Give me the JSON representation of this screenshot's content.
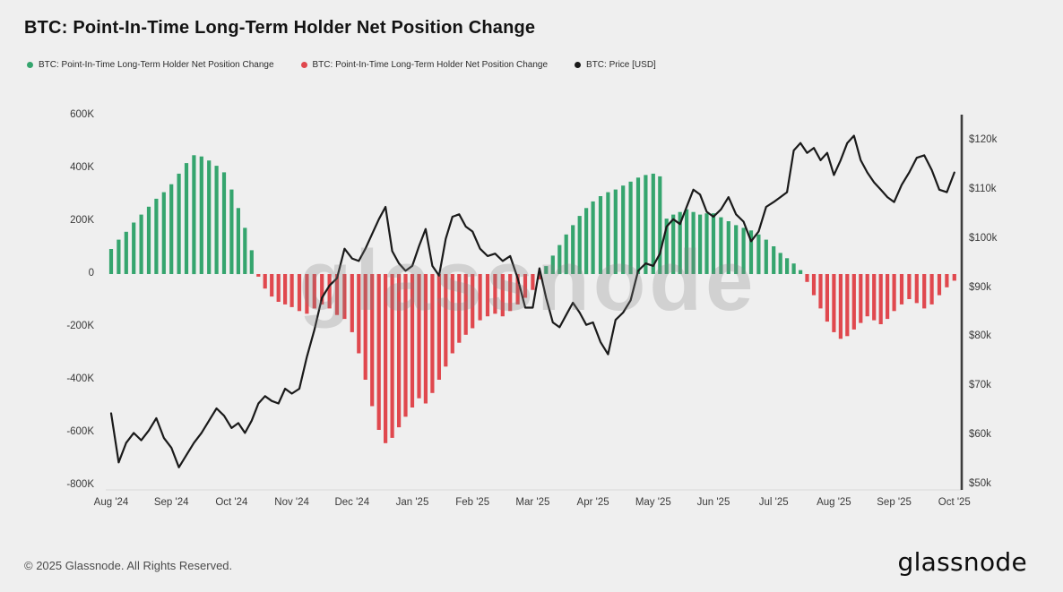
{
  "page": {
    "title": "BTC: Point-In-Time Long-Term Holder Net Position Change",
    "watermark": "glassnode",
    "footer_copyright": "© 2025 Glassnode. All Rights Reserved.",
    "brand_wordmark": "glassnode",
    "background_color": "#efefef"
  },
  "legend": {
    "items": [
      {
        "label": "BTC: Point-In-Time Long-Term Holder Net Position Change",
        "color": "#35a56e",
        "marker": "dot"
      },
      {
        "label": "BTC: Point-In-Time Long-Term Holder Net Position Change",
        "color": "#e0484e",
        "marker": "dot"
      },
      {
        "label": "BTC: Price [USD]",
        "color": "#1a1a1a",
        "marker": "dot"
      }
    ]
  },
  "chart_data": {
    "type": "bar",
    "combo_types": [
      "bar",
      "line"
    ],
    "title": "BTC: Point-In-Time Long-Term Holder Net Position Change",
    "grid": false,
    "legend_position": "top-left",
    "x_months": [
      "Aug '24",
      "Sep '24",
      "Oct '24",
      "Nov '24",
      "Dec '24",
      "Jan '25",
      "Feb '25",
      "Mar '25",
      "Apr '25",
      "May '25",
      "Jun '25",
      "Jul '25",
      "Aug '25",
      "Sep '25",
      "Oct '25"
    ],
    "left_axis": {
      "ticks": [
        "600K",
        "400K",
        "200K",
        "0",
        "-200K",
        "-400K",
        "-600K",
        "-800K"
      ],
      "tick_values": [
        600,
        400,
        200,
        0,
        -200,
        -400,
        -600,
        -800
      ],
      "range": [
        -800,
        620
      ],
      "values_unit": "K BTC"
    },
    "right_axis": {
      "ticks": [
        "$120k",
        "$110k",
        "$100k",
        "$90k",
        "$80k",
        "$70k",
        "$60k",
        "$50k"
      ],
      "tick_values": [
        120,
        110,
        100,
        90,
        80,
        70,
        60,
        50
      ],
      "range": [
        50,
        123
      ],
      "values_unit": "USD (thousands)"
    },
    "series": [
      {
        "name": "BTC: Point-In-Time Long-Term Holder Net Position Change",
        "type": "bar",
        "axis": "left",
        "values_unit": "K BTC",
        "positive_color": "#35a56e",
        "negative_color": "#e0484e",
        "monthly_values": [
          {
            "month": "Aug '24",
            "values": [
              95,
              130,
              160,
              195,
              225,
              255,
              285,
              310
            ]
          },
          {
            "month": "Sep '24",
            "values": [
              340,
              380,
              420,
              450,
              445,
              430,
              410,
              385
            ]
          },
          {
            "month": "Oct '24",
            "values": [
              320,
              250,
              175,
              90,
              -10,
              -55,
              -85,
              -105,
              -115
            ]
          },
          {
            "month": "Nov '24",
            "values": [
              -125,
              -140,
              -150,
              -130,
              -115,
              -130,
              -155,
              -170
            ]
          },
          {
            "month": "Dec '24",
            "values": [
              -220,
              -300,
              -400,
              -500,
              -590,
              -640,
              -620,
              -580,
              -540
            ]
          },
          {
            "month": "Jan '25",
            "values": [
              -505,
              -470,
              -490,
              -450,
              -400,
              -350,
              -300,
              -260,
              -230
            ]
          },
          {
            "month": "Feb '25",
            "values": [
              -205,
              -175,
              -160,
              -150,
              -160,
              -140,
              -115,
              -90
            ]
          },
          {
            "month": "Mar '25",
            "values": [
              -60,
              -20,
              30,
              70,
              110,
              150,
              185,
              220,
              250
            ]
          },
          {
            "month": "Apr '25",
            "values": [
              275,
              295,
              310,
              320,
              335,
              350,
              365,
              375
            ]
          },
          {
            "month": "May '25",
            "values": [
              380,
              370,
              210,
              225,
              235,
              245,
              235,
              225,
              230
            ]
          },
          {
            "month": "Jun '25",
            "values": [
              230,
              215,
              200,
              185,
              175,
              165,
              150,
              130
            ]
          },
          {
            "month": "Jul '25",
            "values": [
              105,
              80,
              60,
              40,
              15,
              -30,
              -80,
              -130,
              -180
            ]
          },
          {
            "month": "Aug '25",
            "values": [
              -220,
              -245,
              -235,
              -210,
              -185,
              -160,
              -175,
              -190,
              -170
            ]
          },
          {
            "month": "Sep '25",
            "values": [
              -140,
              -115,
              -95,
              -110,
              -130,
              -115,
              -80,
              -50
            ]
          },
          {
            "month": "Oct '25",
            "values": [
              -25
            ]
          }
        ]
      },
      {
        "name": "BTC: Price [USD]",
        "type": "line",
        "axis": "right",
        "values_unit": "USD (thousands)",
        "color": "#1a1a1a",
        "monthly_values": [
          {
            "month": "Aug '24",
            "values": [
              64.5,
              54.5,
              58.5,
              60.5,
              59,
              61,
              63.5,
              59.5
            ]
          },
          {
            "month": "Sep '24",
            "values": [
              57.5,
              53.5,
              56,
              58.5,
              60.5,
              63,
              65.5,
              64
            ]
          },
          {
            "month": "Oct '24",
            "values": [
              61.5,
              62.5,
              60.5,
              63,
              66.5,
              68,
              67,
              66.5,
              69.5
            ]
          },
          {
            "month": "Nov '24",
            "values": [
              68.5,
              69.5,
              76,
              81.5,
              88,
              90.5,
              92,
              98
            ]
          },
          {
            "month": "Dec '24",
            "values": [
              96,
              95.5,
              98,
              101,
              104,
              106.5,
              97.5,
              95,
              93.5
            ]
          },
          {
            "month": "Jan '25",
            "values": [
              94.5,
              98.5,
              102,
              94.5,
              92.5,
              100,
              104.5,
              105,
              102.5
            ]
          },
          {
            "month": "Feb '25",
            "values": [
              101.5,
              98,
              96.5,
              97,
              95.5,
              96.5,
              92,
              86
            ]
          },
          {
            "month": "Mar '25",
            "values": [
              86,
              94,
              88,
              83,
              82,
              84.5,
              87,
              85,
              82.5
            ]
          },
          {
            "month": "Apr '25",
            "values": [
              83,
              79,
              76.5,
              83.5,
              85,
              87.5,
              93.5,
              95
            ]
          },
          {
            "month": "May '25",
            "values": [
              94.5,
              97,
              102.5,
              104,
              103,
              106.5,
              110,
              109,
              105.5
            ]
          },
          {
            "month": "Jun '25",
            "values": [
              104.5,
              106,
              108.5,
              105,
              103.5,
              99.5,
              101.5,
              106.5
            ]
          },
          {
            "month": "Jul '25",
            "values": [
              107.5,
              108.5,
              109.5,
              118,
              119.5,
              117.5,
              118.5,
              116,
              117.5
            ]
          },
          {
            "month": "Aug '25",
            "values": [
              113,
              116,
              119.5,
              121,
              116,
              113.5,
              111.5,
              110,
              108.5
            ]
          },
          {
            "month": "Sep '25",
            "values": [
              107.5,
              111,
              113.5,
              116.5,
              117,
              114,
              110,
              109.5
            ]
          },
          {
            "month": "Oct '25",
            "values": [
              113.5
            ]
          }
        ]
      }
    ]
  }
}
